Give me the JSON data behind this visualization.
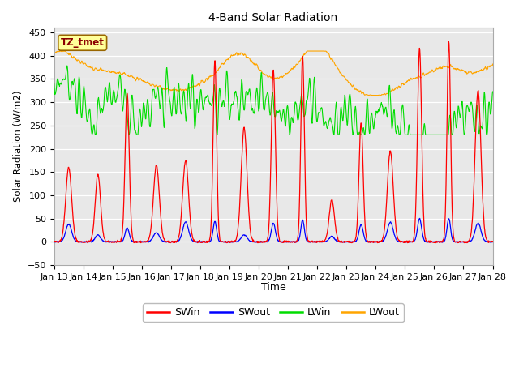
{
  "title": "4-Band Solar Radiation",
  "xlabel": "Time",
  "ylabel": "Solar Radiation (W/m2)",
  "ylim": [
    -50,
    460
  ],
  "yticks": [
    -50,
    0,
    50,
    100,
    150,
    200,
    250,
    300,
    350,
    400,
    450
  ],
  "annotation_text": "TZ_tmet",
  "annotation_color": "#8B0000",
  "annotation_bg": "#FFFF99",
  "annotation_border": "#996600",
  "colors": {
    "SWin": "#FF0000",
    "SWout": "#0000FF",
    "LWin": "#00DD00",
    "LWout": "#FFA500"
  },
  "plot_bg": "#E8E8E8",
  "grid_color": "#FFFFFF",
  "n_days": 15,
  "start_day": 13,
  "hours_per_day": 24,
  "dt_hours": 0.25,
  "day_peaks_SWin": [
    160,
    145,
    320,
    165,
    175,
    390,
    245,
    370,
    400,
    90,
    255,
    195,
    415,
    430,
    325
  ],
  "day_widths_SWin": [
    0.1,
    0.09,
    0.07,
    0.1,
    0.1,
    0.06,
    0.1,
    0.07,
    0.06,
    0.09,
    0.07,
    0.1,
    0.07,
    0.06,
    0.1
  ],
  "day_peaks_SWout": [
    38,
    15,
    30,
    20,
    43,
    44,
    15,
    40,
    47,
    12,
    37,
    42,
    50,
    50,
    40
  ],
  "day_widths_SWout": [
    0.1,
    0.09,
    0.07,
    0.1,
    0.1,
    0.06,
    0.1,
    0.07,
    0.06,
    0.09,
    0.07,
    0.1,
    0.07,
    0.06,
    0.1
  ]
}
